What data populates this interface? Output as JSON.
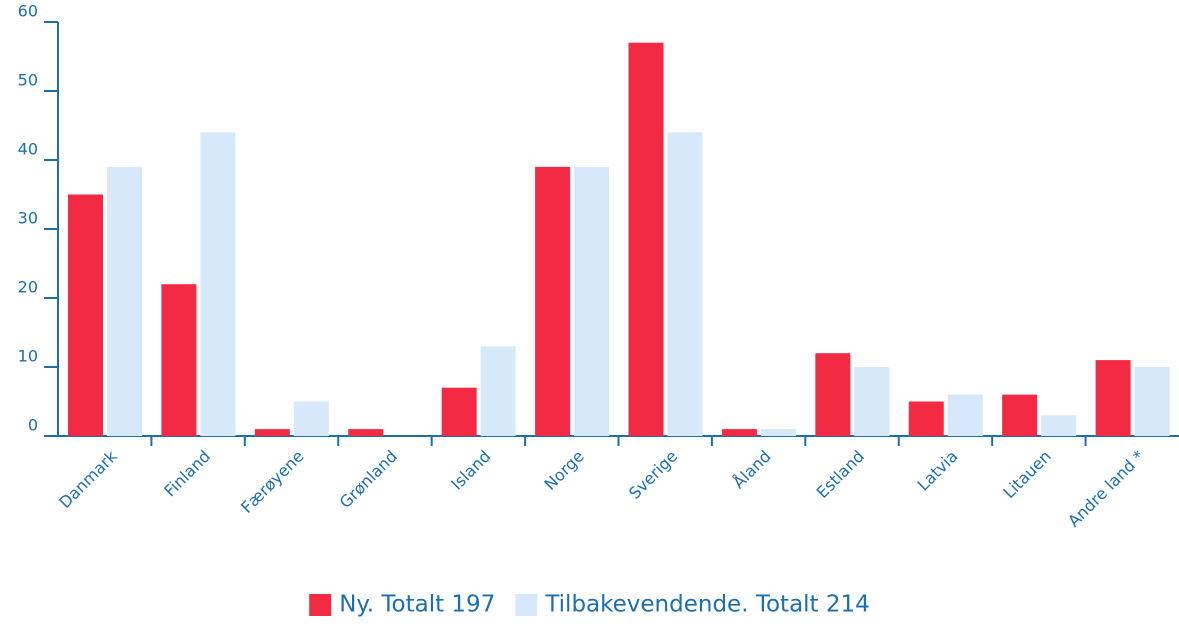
{
  "chart_data": {
    "type": "bar",
    "categories": [
      "Danmark",
      "Finland",
      "Færøyene",
      "Grønland",
      "Island",
      "Norge",
      "Sverige",
      "Åland",
      "Estland",
      "Latvia",
      "Litauen",
      "Andre land *"
    ],
    "series": [
      {
        "name": "Ny. Totalt 197",
        "color": "#f32a44",
        "values": [
          35,
          22,
          1,
          1,
          7,
          39,
          57,
          1,
          12,
          5,
          6,
          11
        ]
      },
      {
        "name": "Tilbakevendende. Totalt 214",
        "color": "#d6e8fa",
        "values": [
          39,
          44,
          5,
          0,
          13,
          39,
          44,
          1,
          10,
          6,
          3,
          10
        ]
      }
    ],
    "ylim": [
      0,
      60
    ],
    "yticks": [
      0,
      10,
      20,
      30,
      40,
      50,
      60
    ],
    "legend": "bottom"
  }
}
